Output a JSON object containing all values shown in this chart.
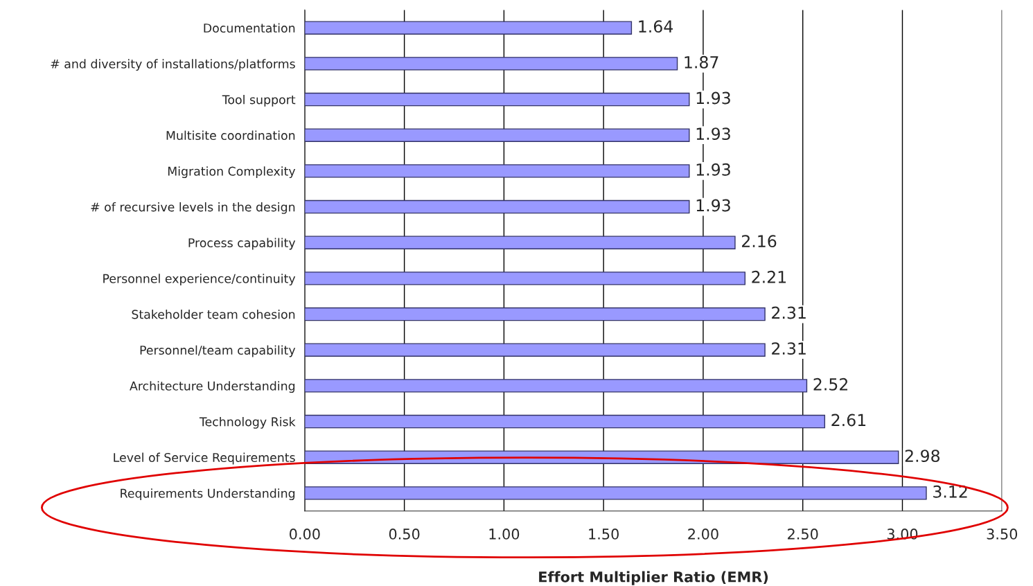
{
  "chart_data": {
    "type": "bar",
    "orientation": "horizontal",
    "xlabel": "Effort Multiplier Ratio (EMR)",
    "categories": [
      "Documentation",
      "# and diversity of installations/platforms",
      "Tool support",
      "Multisite coordination",
      "Migration Complexity",
      "# of recursive levels in the design",
      "Process capability",
      "Personnel experience/continuity",
      "Stakeholder team cohesion",
      "Personnel/team capability",
      "Architecture Understanding",
      "Technology Risk",
      "Level of Service Requirements",
      "Requirements Understanding"
    ],
    "values": [
      1.64,
      1.87,
      1.93,
      1.93,
      1.93,
      1.93,
      2.16,
      2.21,
      2.31,
      2.31,
      2.52,
      2.61,
      2.98,
      3.12
    ],
    "color": "#9999ff",
    "xlim": [
      0,
      3.5
    ],
    "xticks": [
      {
        "value": 0,
        "label": "0.00"
      },
      {
        "value": 0.5,
        "label": "0.50"
      },
      {
        "value": 1,
        "label": "1.00"
      },
      {
        "value": 1.5,
        "label": "1.50"
      },
      {
        "value": 2,
        "label": "2.00"
      },
      {
        "value": 2.5,
        "label": "2.50"
      },
      {
        "value": 3,
        "label": "3.00"
      },
      {
        "value": 3.5,
        "label": "3.50"
      }
    ],
    "grid": "x",
    "data_labels": true
  }
}
